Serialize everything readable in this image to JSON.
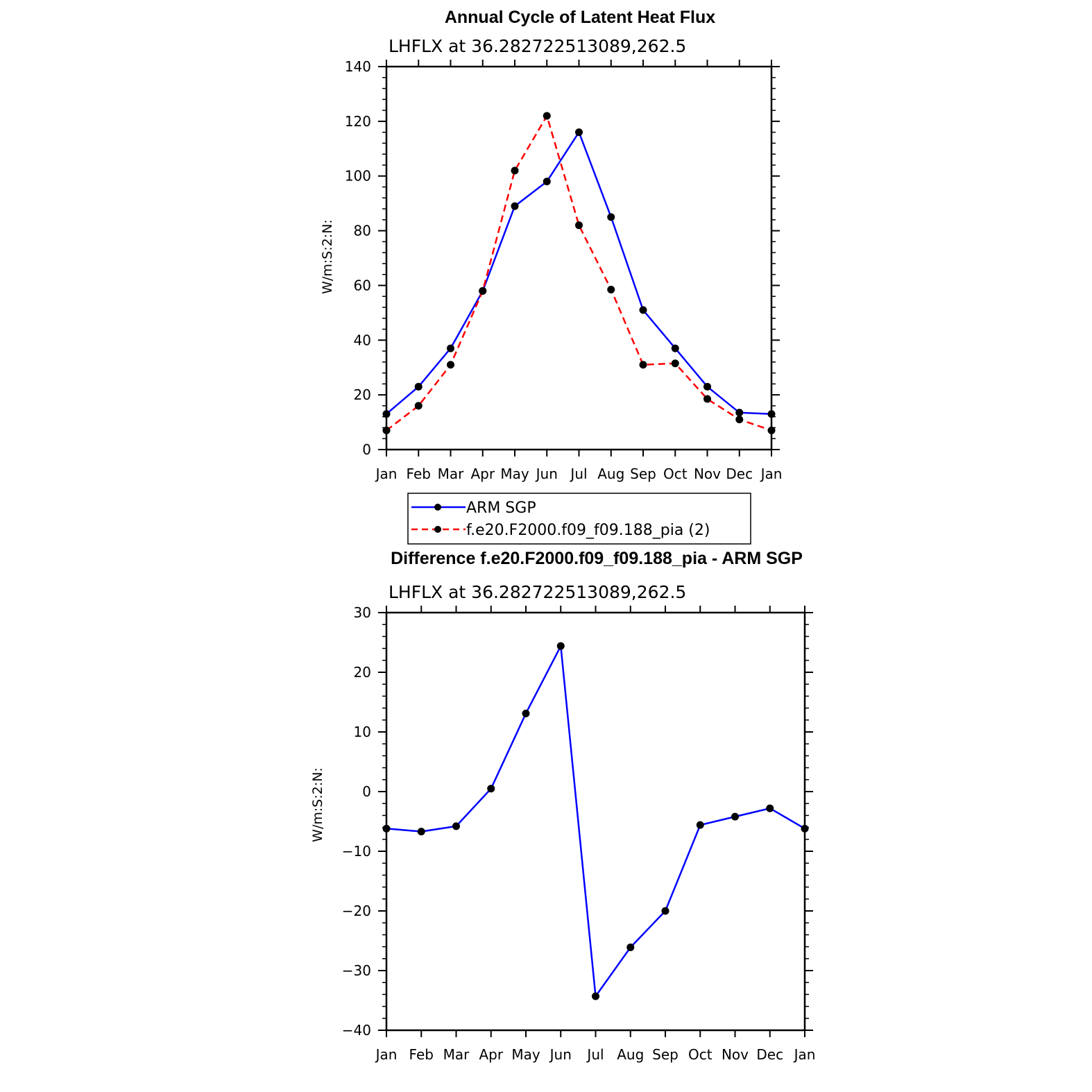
{
  "chart_data": [
    {
      "type": "line",
      "title": "Annual Cycle of Latent Heat Flux",
      "subtitle": "LHFLX at 36.282722513089,262.5",
      "xlabel": "",
      "ylabel": "W/m:S:2:N:",
      "categories": [
        "Jan",
        "Feb",
        "Mar",
        "Apr",
        "May",
        "Jun",
        "Jul",
        "Aug",
        "Sep",
        "Oct",
        "Nov",
        "Dec",
        "Jan"
      ],
      "ylim": [
        0,
        140
      ],
      "yticks": [
        0,
        20,
        40,
        60,
        80,
        100,
        120,
        140
      ],
      "series": [
        {
          "name": "ARM SGP",
          "color": "#0000ff",
          "dash": "solid",
          "values": [
            13,
            23,
            37,
            58,
            89,
            98,
            116,
            85,
            51,
            37,
            23,
            13.5,
            13
          ]
        },
        {
          "name": "f.e20.F2000.f09_f09.188_pia (2)",
          "color": "#ff0000",
          "dash": "dashed",
          "values": [
            7,
            16,
            31,
            58,
            102,
            122,
            82,
            58.5,
            31,
            31.5,
            18.5,
            11,
            7
          ]
        }
      ],
      "legend": "below"
    },
    {
      "type": "line",
      "title": "Difference f.e20.F2000.f09_f09.188_pia - ARM SGP",
      "subtitle": "LHFLX at 36.282722513089,262.5",
      "xlabel": "",
      "ylabel": "W/m:S:2:N:",
      "categories": [
        "Jan",
        "Feb",
        "Mar",
        "Apr",
        "May",
        "Jun",
        "Jul",
        "Aug",
        "Sep",
        "Oct",
        "Nov",
        "Dec",
        "Jan"
      ],
      "ylim": [
        -40,
        30
      ],
      "yticks": [
        -40,
        -30,
        -20,
        -10,
        0,
        10,
        20,
        30
      ],
      "series": [
        {
          "name": "Difference",
          "color": "#0000ff",
          "dash": "solid",
          "values": [
            -6.2,
            -6.7,
            -5.8,
            0.5,
            13.1,
            24.4,
            -34.3,
            -26.1,
            -20,
            -5.6,
            -4.2,
            -2.8,
            -6.2
          ]
        }
      ]
    }
  ]
}
